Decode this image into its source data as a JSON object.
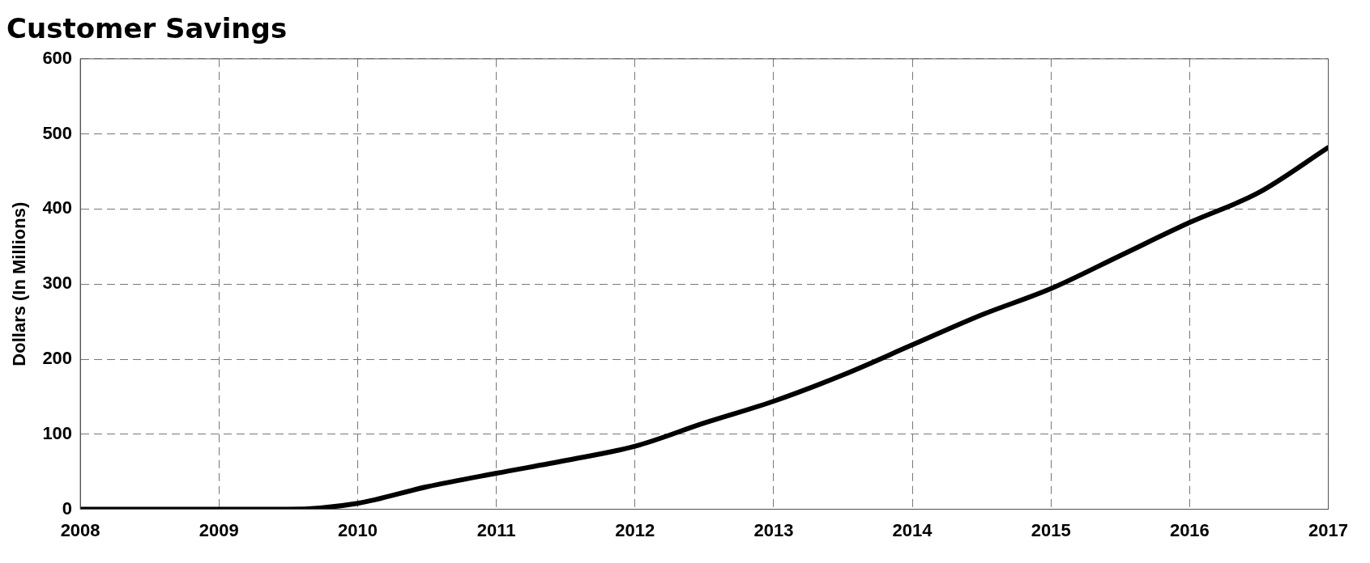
{
  "chart_data": {
    "type": "line",
    "title": "Customer Savings",
    "ylabel": "Dollars (In Millions)",
    "x": [
      2008,
      2009,
      2009.5,
      2010,
      2010.5,
      2011,
      2011.5,
      2012,
      2012.5,
      2013,
      2013.5,
      2014,
      2014.5,
      2015,
      2015.5,
      2016,
      2016.5,
      2017
    ],
    "series": [
      {
        "color": "#000000",
        "values": [
          0,
          0,
          0,
          8,
          30,
          48,
          65,
          84,
          115,
          144,
          179,
          219,
          259,
          294,
          338,
          382,
          422,
          482
        ]
      }
    ],
    "xlim": [
      2008,
      2017
    ],
    "xticks": [
      2008,
      2009,
      2010,
      2011,
      2012,
      2013,
      2014,
      2015,
      2016,
      2017
    ],
    "ylim": [
      0,
      600
    ],
    "yticks": [
      0,
      100,
      200,
      300,
      400,
      500,
      600
    ],
    "grid": true,
    "legend": false,
    "marker": "none",
    "line_style": "solid"
  }
}
